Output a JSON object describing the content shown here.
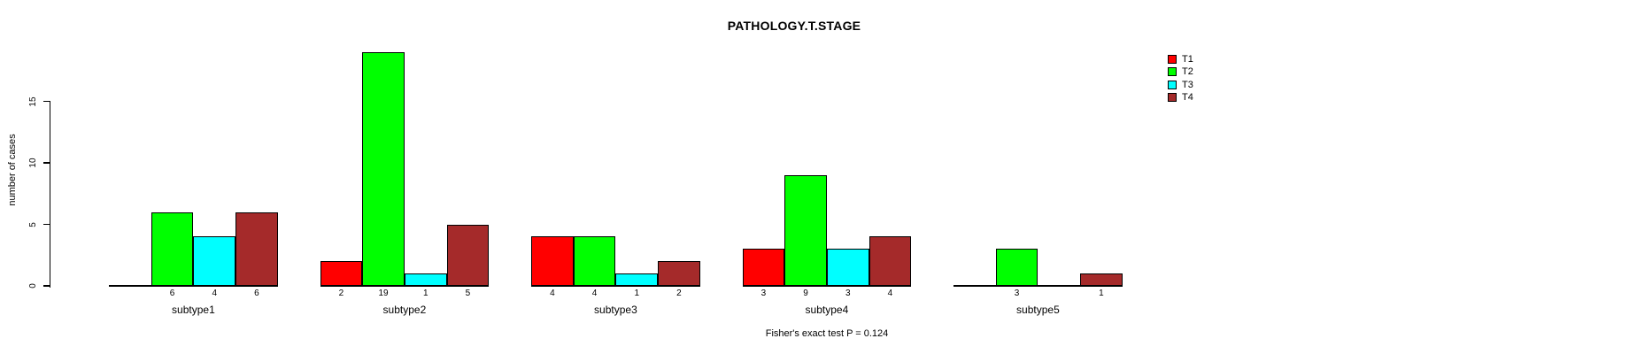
{
  "chart_data": {
    "type": "bar",
    "title": "PATHOLOGY.T.STAGE",
    "ylabel": "number of cases",
    "xlabel": "",
    "footnote": "Fisher's exact test P = 0.124",
    "categories": [
      "subtype1",
      "subtype2",
      "subtype3",
      "subtype4",
      "subtype5"
    ],
    "series": [
      {
        "name": "T1",
        "color": "#FF0000",
        "values": [
          0,
          2,
          4,
          3,
          0
        ]
      },
      {
        "name": "T2",
        "color": "#00FF00",
        "values": [
          6,
          19,
          4,
          9,
          3
        ]
      },
      {
        "name": "T3",
        "color": "#00FFFF",
        "values": [
          4,
          1,
          1,
          3,
          0
        ]
      },
      {
        "name": "T4",
        "color": "#A52A2A",
        "values": [
          6,
          5,
          2,
          4,
          1
        ]
      }
    ],
    "yticks": [
      0,
      5,
      10,
      15
    ],
    "ylim": [
      0,
      19
    ],
    "grid": "off",
    "legend_position": "right",
    "bar_value_labels": "shown for nonzero bars",
    "axis_color": "#000000",
    "background_color": "#ffffff"
  }
}
